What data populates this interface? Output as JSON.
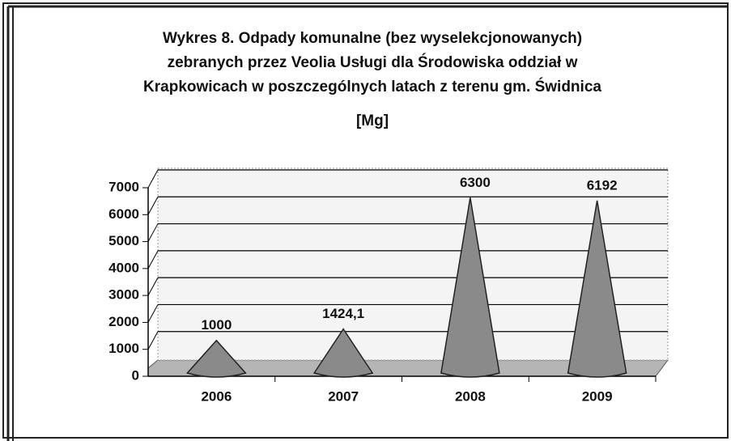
{
  "chart_data": {
    "type": "cone",
    "title": [
      "Wykres 8. Odpady komunalne (bez wyselekcjonowanych)",
      "zebranych przez Veolia Usługi dla Środowiska oddział w",
      "Krapkowicach w  poszczególnych latach z terenu gm. Świdnica",
      "[Mg]"
    ],
    "categories": [
      "2006",
      "2007",
      "2008",
      "2009"
    ],
    "values": [
      1000,
      1424.1,
      6300,
      6192
    ],
    "value_labels": [
      "1000",
      "1424,1",
      "6300",
      "6192"
    ],
    "color": "#8a8a8a",
    "ylim": [
      0,
      7000
    ],
    "yticks": [
      0,
      1000,
      2000,
      3000,
      4000,
      5000,
      6000,
      7000
    ],
    "grid": true
  }
}
